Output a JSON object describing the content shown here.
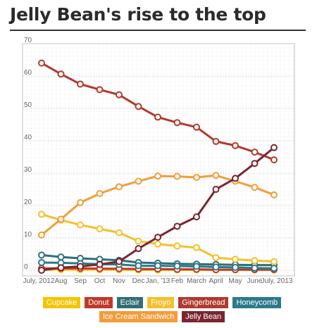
{
  "chart_data": {
    "type": "line",
    "title": "Jelly Bean's rise to the top",
    "xlabel": "",
    "ylabel": "",
    "categories": [
      "July, 2012",
      "Aug",
      "Sep",
      "Oct",
      "Nov",
      "Dec",
      "Jan, '13",
      "Feb",
      "March",
      "April",
      "May",
      "June",
      "July, 2013"
    ],
    "ylim": [
      0,
      70
    ],
    "yticks": [
      0,
      10,
      20,
      30,
      40,
      50,
      60,
      70
    ],
    "grid": true,
    "legend_position": "bottom",
    "series": [
      {
        "name": "Cupcake",
        "color": "#f5c400",
        "values": [
          0.2,
          0.2,
          0.2,
          0.2,
          0.2,
          0.1,
          0.1,
          0.1,
          0.1,
          0.1,
          0.1,
          0.1,
          0.1
        ]
      },
      {
        "name": "Donut",
        "color": "#c0392b",
        "values": [
          0.6,
          0.6,
          0.6,
          0.5,
          0.5,
          0.4,
          0.4,
          0.3,
          0.3,
          0.2,
          0.2,
          0.2,
          0.2
        ]
      },
      {
        "name": "Eclair",
        "color": "#2f6f73",
        "values": [
          4.7,
          4.1,
          3.7,
          3.4,
          3.1,
          2.4,
          2.2,
          2.0,
          1.9,
          1.8,
          1.7,
          1.6,
          1.6
        ]
      },
      {
        "name": "Froyo",
        "color": "#f4c02e",
        "values": [
          17.3,
          15.5,
          14.0,
          12.8,
          11.6,
          9.0,
          8.1,
          7.5,
          7.0,
          3.9,
          3.4,
          3.0,
          2.7
        ]
      },
      {
        "name": "Gingerbread",
        "color": "#b03a2e",
        "values": [
          64.0,
          60.6,
          57.5,
          55.8,
          54.2,
          50.6,
          47.3,
          45.6,
          44.2,
          39.8,
          38.5,
          36.5,
          34.1
        ]
      },
      {
        "name": "Honeycomb",
        "color": "#2b7a8c",
        "values": [
          2.4,
          2.3,
          2.1,
          1.9,
          1.8,
          1.4,
          1.4,
          1.3,
          1.2,
          1.0,
          0.9,
          0.7,
          0.6
        ]
      },
      {
        "name": "Ice Cream Sandwich",
        "color": "#f39c3a",
        "values": [
          10.9,
          15.8,
          20.9,
          23.7,
          25.8,
          27.5,
          29.1,
          29.0,
          28.7,
          29.3,
          27.5,
          25.6,
          23.3
        ]
      },
      {
        "name": "Jelly Bean",
        "color": "#7b2531",
        "values": [
          0.0,
          0.8,
          1.2,
          1.8,
          2.7,
          6.7,
          10.2,
          13.6,
          16.5,
          25.0,
          28.4,
          33.0,
          37.9
        ]
      }
    ],
    "legend_rows": [
      [
        "Cupcake",
        "Donut",
        "Eclair",
        "Froyo",
        "Gingerbread",
        "Honeycomb"
      ],
      [
        "Ice Cream Sandwich",
        "Jelly Bean"
      ]
    ]
  }
}
